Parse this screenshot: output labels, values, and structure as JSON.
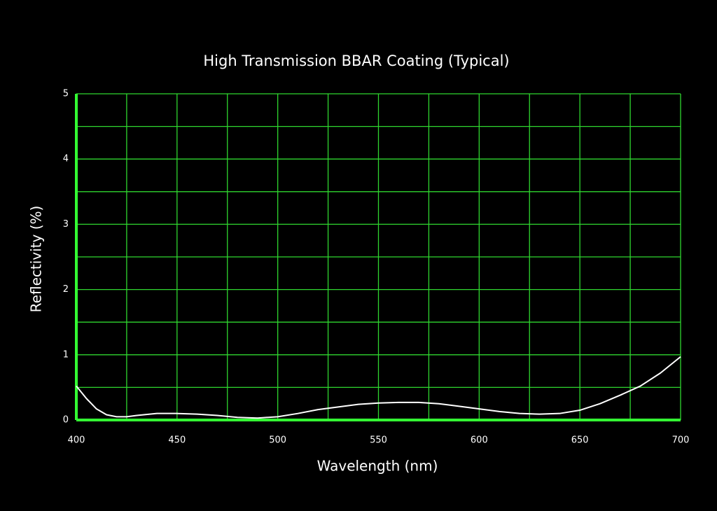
{
  "chart_data": {
    "type": "line",
    "title": "High Transmission BBAR Coating (Typical)",
    "x_label": "Wavelength (nm)",
    "y_label": "Reflectivity (%)",
    "x": [
      400,
      405,
      410,
      415,
      420,
      425,
      430,
      440,
      450,
      460,
      470,
      480,
      490,
      500,
      510,
      520,
      530,
      540,
      550,
      560,
      570,
      580,
      590,
      600,
      610,
      620,
      630,
      640,
      650,
      660,
      670,
      680,
      690,
      700
    ],
    "series": [
      {
        "name": "Reflectivity",
        "color": "#ffffff",
        "values": [
          0.52,
          0.33,
          0.17,
          0.08,
          0.05,
          0.05,
          0.07,
          0.1,
          0.1,
          0.09,
          0.07,
          0.04,
          0.03,
          0.05,
          0.1,
          0.16,
          0.2,
          0.24,
          0.26,
          0.27,
          0.27,
          0.25,
          0.21,
          0.17,
          0.13,
          0.1,
          0.09,
          0.1,
          0.15,
          0.25,
          0.38,
          0.52,
          0.72,
          0.97
        ]
      }
    ],
    "xlim": [
      400,
      700
    ],
    "ylim": [
      0,
      5
    ],
    "xticks": [
      400,
      450,
      500,
      550,
      600,
      650,
      700
    ],
    "yticks": [
      0,
      1,
      2,
      3,
      4,
      5
    ],
    "minor_xticks": [
      425,
      475,
      525,
      575,
      625,
      675
    ],
    "minor_yticks": [
      0.5,
      1.5,
      2.5,
      3.5,
      4.5
    ],
    "grid": true,
    "grid_color": "#2fd62f",
    "axis_color": "#33ff33",
    "title_color": "#f7941d",
    "background": "#000000"
  }
}
